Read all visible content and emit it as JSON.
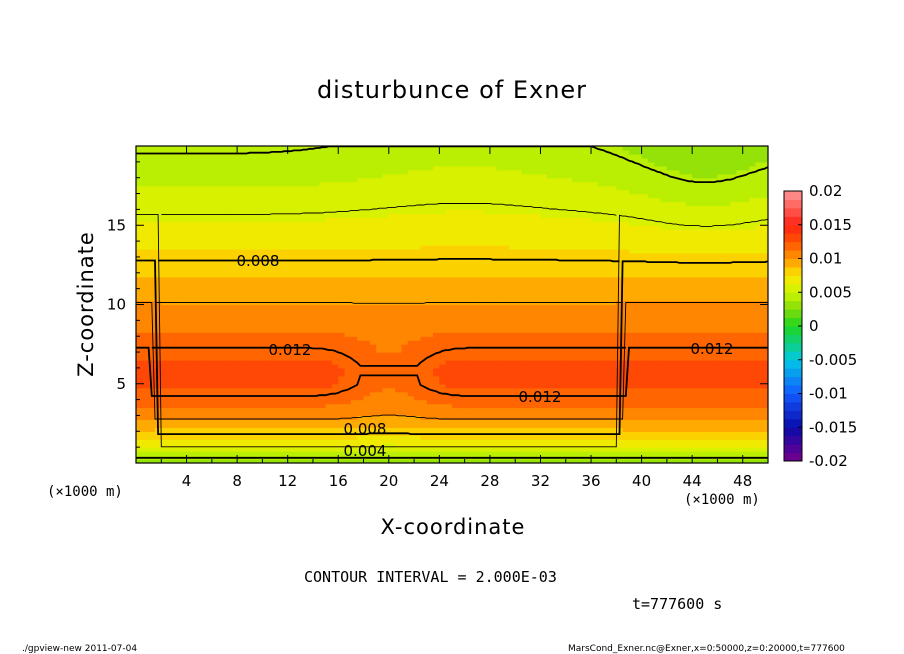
{
  "chart_data": {
    "type": "heatmap",
    "title": "disturbunce of Exner",
    "xlabel": "X-coordinate",
    "ylabel": "Z-coordinate",
    "x_unit": "(×1000 m)",
    "y_unit": "(×1000 m)",
    "xlim": [
      0,
      50
    ],
    "ylim": [
      0,
      20
    ],
    "x_ticks": [
      4,
      8,
      12,
      16,
      20,
      24,
      28,
      32,
      36,
      40,
      44,
      48
    ],
    "y_ticks": [
      5,
      10,
      15
    ],
    "colorbar": {
      "ticks": [
        "0.02",
        "0.015",
        "0.01",
        "0.005",
        "0",
        "-0.005",
        "-0.01",
        "-0.015",
        "-0.02"
      ],
      "range": [
        -0.02,
        0.02
      ]
    },
    "contour_labels": [
      "0.008",
      "0.012",
      "0.012",
      "0.012",
      "0.008",
      "0.004"
    ],
    "contour_interval_text": "CONTOUR INTERVAL = 2.000E-03",
    "time_text": "t=777600  s",
    "approx_profile": {
      "z": [
        0,
        1,
        2,
        3,
        4,
        5,
        6,
        7,
        8,
        9,
        10,
        11,
        12,
        13,
        14,
        15,
        16,
        17,
        18,
        19,
        20
      ],
      "value": [
        0.003,
        0.006,
        0.0085,
        0.0105,
        0.0118,
        0.0128,
        0.0129,
        0.0122,
        0.0115,
        0.0108,
        0.0101,
        0.0093,
        0.0086,
        0.0078,
        0.0071,
        0.0064,
        0.0058,
        0.0052,
        0.0047,
        0.0042,
        0.0038
      ]
    }
  },
  "footer": {
    "left": "./gpview-new   2011-07-04",
    "right": "MarsCond_Exner.nc@Exner,x=0:50000,z=0:20000,t=777600"
  }
}
